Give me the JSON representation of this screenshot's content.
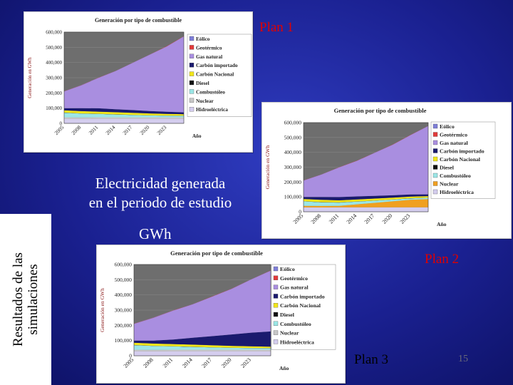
{
  "slide": {
    "center_title_line1": "Electricidad generada",
    "center_title_line2": "en el periodo de estudio",
    "unit_label": "GWh",
    "sidebar_line1": "Resultados de las",
    "sidebar_line2": "simulaciones",
    "plan_labels": [
      "Plan 1",
      "Plan 2",
      "Plan 3"
    ],
    "page_number": "15"
  },
  "chart_data": [
    {
      "id": "plan1",
      "type": "area",
      "stacked": true,
      "title": "Generación por tipo de combustible",
      "xlabel": "Año",
      "ylabel": "Generación en GWh",
      "ylim": [
        0,
        600000
      ],
      "yticks": [
        "0",
        "100,000",
        "200,000",
        "300,000",
        "400,000",
        "500,000",
        "600,000"
      ],
      "x": [
        2005,
        2008,
        2011,
        2014,
        2017,
        2020,
        2023,
        2026
      ],
      "xticks": [
        "2005",
        "2008",
        "2011",
        "2014",
        "2017",
        "2020",
        "2023"
      ],
      "legend_position": "right",
      "series": [
        {
          "name": "Hidroeléctrica",
          "color": "#d4cdee",
          "values": [
            30000,
            29000,
            30000,
            30000,
            30000,
            30000,
            30000,
            30000
          ]
        },
        {
          "name": "Nuclear",
          "color": "#c7c7c7",
          "values": [
            10000,
            10000,
            10000,
            10000,
            10000,
            10000,
            10000,
            10000
          ]
        },
        {
          "name": "Combustóleo",
          "color": "#9be6e6",
          "values": [
            30000,
            25000,
            22000,
            18000,
            15000,
            12000,
            10000,
            9000
          ]
        },
        {
          "name": "Diesel",
          "color": "#101010",
          "values": [
            1000,
            1000,
            1000,
            1000,
            1000,
            1000,
            1000,
            1000
          ]
        },
        {
          "name": "Carbón Nacional",
          "color": "#f2e61a",
          "values": [
            15000,
            15000,
            14000,
            14000,
            13000,
            12000,
            11000,
            10000
          ]
        },
        {
          "name": "Carbón importado",
          "color": "#1a1a6e",
          "values": [
            14000,
            20000,
            22000,
            20000,
            18000,
            16000,
            14000,
            12000
          ]
        },
        {
          "name": "Gas natural",
          "color": "#a98ee0",
          "values": [
            110000,
            150000,
            200000,
            250000,
            310000,
            370000,
            430000,
            500000
          ]
        },
        {
          "name": "Geotérmico",
          "color": "#e23a3a",
          "values": [
            1000,
            1000,
            1000,
            1000,
            1000,
            1000,
            1000,
            1000
          ]
        },
        {
          "name": "Eólico",
          "color": "#7f7fd8",
          "values": [
            500,
            500,
            500,
            500,
            500,
            500,
            500,
            500
          ]
        }
      ]
    },
    {
      "id": "plan2",
      "type": "area",
      "stacked": true,
      "title": "Generación por tipo de combustible",
      "xlabel": "Año",
      "ylabel": "Generación en GWh",
      "ylim": [
        0,
        600000
      ],
      "yticks": [
        "0",
        "100,000",
        "200,000",
        "300,000",
        "400,000",
        "500,000",
        "600,000"
      ],
      "x": [
        2005,
        2008,
        2011,
        2014,
        2017,
        2020,
        2023,
        2026
      ],
      "xticks": [
        "2005",
        "2008",
        "2011",
        "2014",
        "2017",
        "2020",
        "2023"
      ],
      "legend_position": "right",
      "series": [
        {
          "name": "Hidroeléctrica",
          "color": "#d4cdee",
          "values": [
            30000,
            29000,
            30000,
            30000,
            30000,
            30000,
            30000,
            30000
          ]
        },
        {
          "name": "Nuclear",
          "color": "#f0a020",
          "values": [
            10000,
            10000,
            10000,
            20000,
            30000,
            40000,
            50000,
            55000
          ]
        },
        {
          "name": "Combustóleo",
          "color": "#9be6e6",
          "values": [
            30000,
            25000,
            22000,
            18000,
            15000,
            12000,
            10000,
            9000
          ]
        },
        {
          "name": "Diesel",
          "color": "#101010",
          "values": [
            1000,
            1000,
            1000,
            1000,
            1000,
            1000,
            1000,
            1000
          ]
        },
        {
          "name": "Carbón Nacional",
          "color": "#f2e61a",
          "values": [
            15000,
            15000,
            14000,
            14000,
            13000,
            12000,
            11000,
            10000
          ]
        },
        {
          "name": "Carbón importado",
          "color": "#1a1a6e",
          "values": [
            14000,
            20000,
            22000,
            20000,
            18000,
            16000,
            14000,
            12000
          ]
        },
        {
          "name": "Gas natural",
          "color": "#a98ee0",
          "values": [
            110000,
            150000,
            200000,
            240000,
            290000,
            340000,
            400000,
            460000
          ]
        },
        {
          "name": "Geotérmico",
          "color": "#e23a3a",
          "values": [
            1000,
            1000,
            1000,
            1000,
            1000,
            1000,
            1000,
            1000
          ]
        },
        {
          "name": "Eólico",
          "color": "#7f7fd8",
          "values": [
            500,
            500,
            500,
            500,
            500,
            500,
            500,
            500
          ]
        }
      ]
    },
    {
      "id": "plan3",
      "type": "area",
      "stacked": true,
      "title": "Generación por tipo de combustible",
      "xlabel": "Año",
      "ylabel": "Generación en GWh",
      "ylim": [
        0,
        600000
      ],
      "yticks": [
        "0",
        "100,000",
        "200,000",
        "300,000",
        "400,000",
        "500,000",
        "600,000"
      ],
      "x": [
        2005,
        2008,
        2011,
        2014,
        2017,
        2020,
        2023,
        2026
      ],
      "xticks": [
        "2005",
        "2008",
        "2011",
        "2014",
        "2017",
        "2020",
        "2023"
      ],
      "legend_position": "right",
      "series": [
        {
          "name": "Hidroeléctrica",
          "color": "#d4cdee",
          "values": [
            30000,
            29000,
            30000,
            30000,
            30000,
            30000,
            30000,
            30000
          ]
        },
        {
          "name": "Nuclear",
          "color": "#c7c7c7",
          "values": [
            10000,
            10000,
            10000,
            10000,
            10000,
            10000,
            10000,
            10000
          ]
        },
        {
          "name": "Combustóleo",
          "color": "#9be6e6",
          "values": [
            30000,
            25000,
            22000,
            18000,
            15000,
            12000,
            10000,
            9000
          ]
        },
        {
          "name": "Diesel",
          "color": "#101010",
          "values": [
            1000,
            1000,
            1000,
            1000,
            1000,
            1000,
            1000,
            1000
          ]
        },
        {
          "name": "Carbón Nacional",
          "color": "#f2e61a",
          "values": [
            15000,
            15000,
            14000,
            14000,
            13000,
            12000,
            11000,
            10000
          ]
        },
        {
          "name": "Carbón importado",
          "color": "#1a1a6e",
          "values": [
            14000,
            20000,
            30000,
            45000,
            60000,
            75000,
            90000,
            100000
          ]
        },
        {
          "name": "Gas natural",
          "color": "#a98ee0",
          "values": [
            110000,
            150000,
            190000,
            220000,
            260000,
            300000,
            350000,
            400000
          ]
        },
        {
          "name": "Geotérmico",
          "color": "#e23a3a",
          "values": [
            1000,
            1000,
            1000,
            1000,
            1000,
            1000,
            1000,
            1000
          ]
        },
        {
          "name": "Eólico",
          "color": "#7f7fd8",
          "values": [
            500,
            500,
            500,
            500,
            500,
            500,
            500,
            500
          ]
        }
      ]
    }
  ]
}
